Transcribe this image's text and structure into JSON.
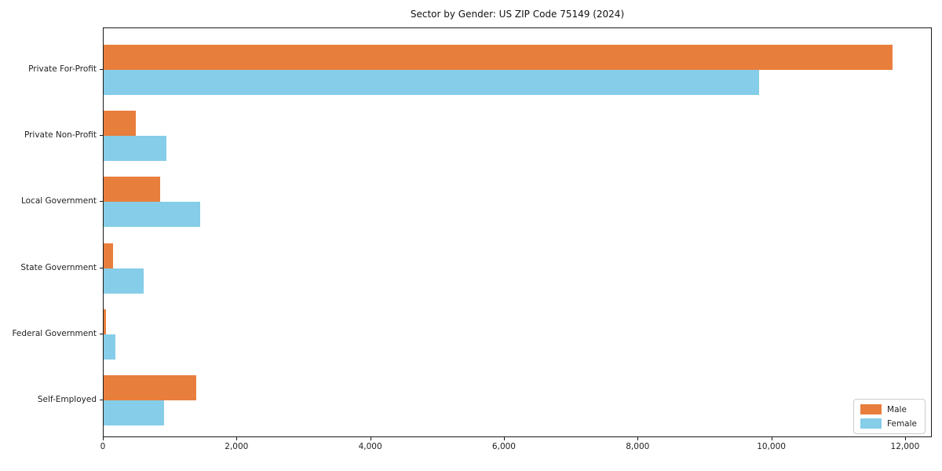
{
  "chart_data": {
    "type": "bar",
    "orientation": "horizontal",
    "title": "Sector by Gender: US ZIP Code 75149 (2024)",
    "categories": [
      "Private For-Profit",
      "Private Non-Profit",
      "Local Government",
      "State Government",
      "Federal Government",
      "Self-Employed"
    ],
    "series": [
      {
        "name": "Male",
        "color": "#e87e3c",
        "values": [
          11800,
          480,
          840,
          140,
          30,
          1380
        ]
      },
      {
        "name": "Female",
        "color": "#85cde8",
        "values": [
          9800,
          940,
          1440,
          600,
          180,
          900
        ]
      }
    ],
    "xlabel": "",
    "ylabel": "",
    "xlim": [
      0,
      12400
    ],
    "xticks": [
      0,
      2000,
      4000,
      6000,
      8000,
      10000,
      12000
    ],
    "xtick_labels": [
      "0",
      "2,000",
      "4,000",
      "6,000",
      "8,000",
      "10,000",
      "12,000"
    ],
    "grid": false,
    "legend_position": "lower right"
  }
}
